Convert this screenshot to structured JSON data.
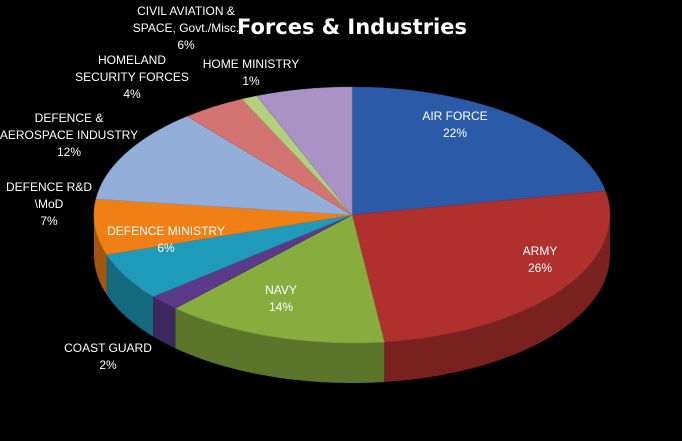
{
  "chart_data": {
    "type": "pie",
    "title": "Forces & Industries",
    "start_at": "top",
    "direction": "clockwise",
    "slices": [
      {
        "name": "AIR FORCE",
        "label": "AIR FORCE",
        "pct": "22%",
        "value": 22,
        "color": "#2b5aa8"
      },
      {
        "name": "ARMY",
        "label": "ARMY",
        "pct": "26%",
        "value": 26,
        "color": "#b0302e"
      },
      {
        "name": "NAVY",
        "label": "NAVY",
        "pct": "14%",
        "value": 14,
        "color": "#86ad3e"
      },
      {
        "name": "COAST GUARD",
        "label": "COAST GUARD",
        "pct": "2%",
        "value": 2,
        "color": "#5b3a8a"
      },
      {
        "name": "DEFENCE MINISTRY",
        "label": "DEFENCE MINISTRY",
        "pct": "6%",
        "value": 6,
        "color": "#1f9bb9"
      },
      {
        "name": "DEFENCE R&D \\MoD",
        "label": "DEFENCE R&D\n\\MoD",
        "pct": "7%",
        "value": 7,
        "color": "#f07f16"
      },
      {
        "name": "DEFENCE & AEROSPACE INDUSTRY",
        "label": "DEFENCE &\nAEROSPACE INDUSTRY",
        "pct": "12%",
        "value": 12,
        "color": "#93aed9"
      },
      {
        "name": "HOMELAND SECURITY FORCES",
        "label": "HOMELAND\nSECURITY FORCES",
        "pct": "4%",
        "value": 4,
        "color": "#d37473"
      },
      {
        "name": "HOME MINISTRY",
        "label": "HOME MINISTRY",
        "pct": "1%",
        "value": 1,
        "color": "#b4d07e"
      },
      {
        "name": "CIVIL AVIATION & SPACE, Govt./Misc.",
        "label": "CIVIL AVIATION &\nSPACE, Govt./Misc.",
        "pct": "6%",
        "value": 6,
        "color": "#a993c4"
      }
    ]
  }
}
